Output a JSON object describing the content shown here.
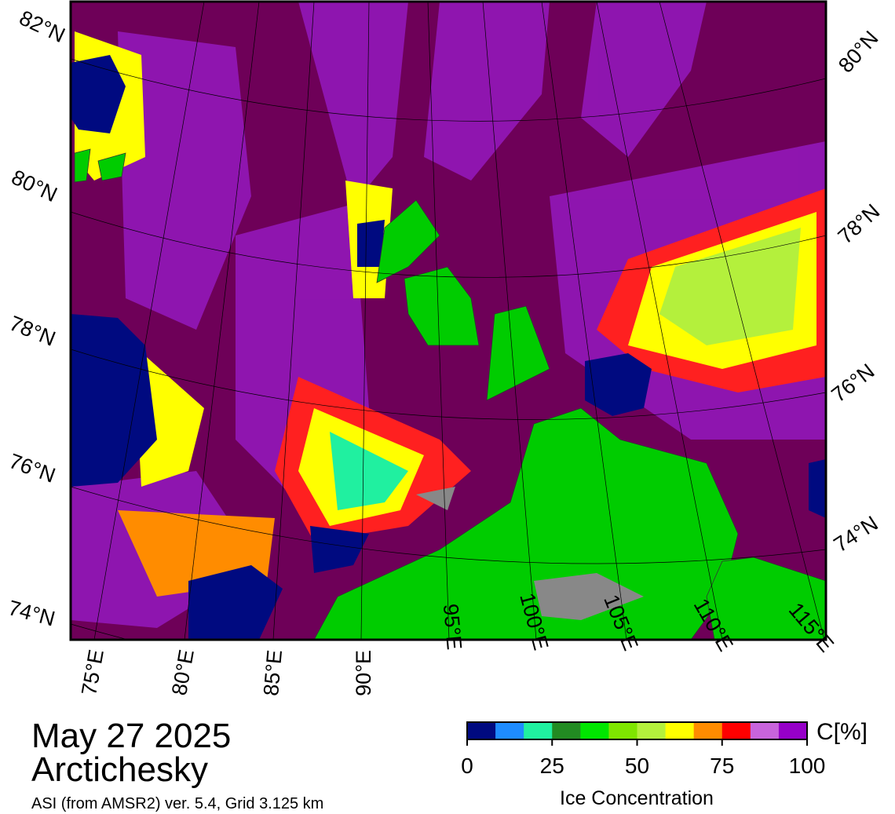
{
  "map": {
    "date": "May 27 2025",
    "region": "Arctichesky",
    "source": "ASI (from AMSR2) ver. 5.4,  Grid 3.125 km",
    "lat_labels_left": [
      "82°N",
      "80°N",
      "78°N",
      "76°N",
      "74°N"
    ],
    "lat_labels_right": [
      "80°N",
      "78°N",
      "76°N",
      "74°N"
    ],
    "lon_labels": [
      "75°E",
      "80°E",
      "85°E",
      "90°E",
      "95°E",
      "100°E",
      "105°E",
      "110°E",
      "115°E"
    ]
  },
  "colorbar": {
    "unit": "C[%]",
    "label": "Ice Concentration",
    "lim": [
      0,
      100
    ],
    "ticks": [
      0,
      25,
      50,
      75,
      100
    ],
    "colors": [
      "#000a80",
      "#1e8cff",
      "#20f0a0",
      "#228b22",
      "#00e600",
      "#7fe600",
      "#b4f03c",
      "#ffff00",
      "#ff8c00",
      "#ff0000",
      "#c864dc",
      "#9600c8"
    ]
  }
}
